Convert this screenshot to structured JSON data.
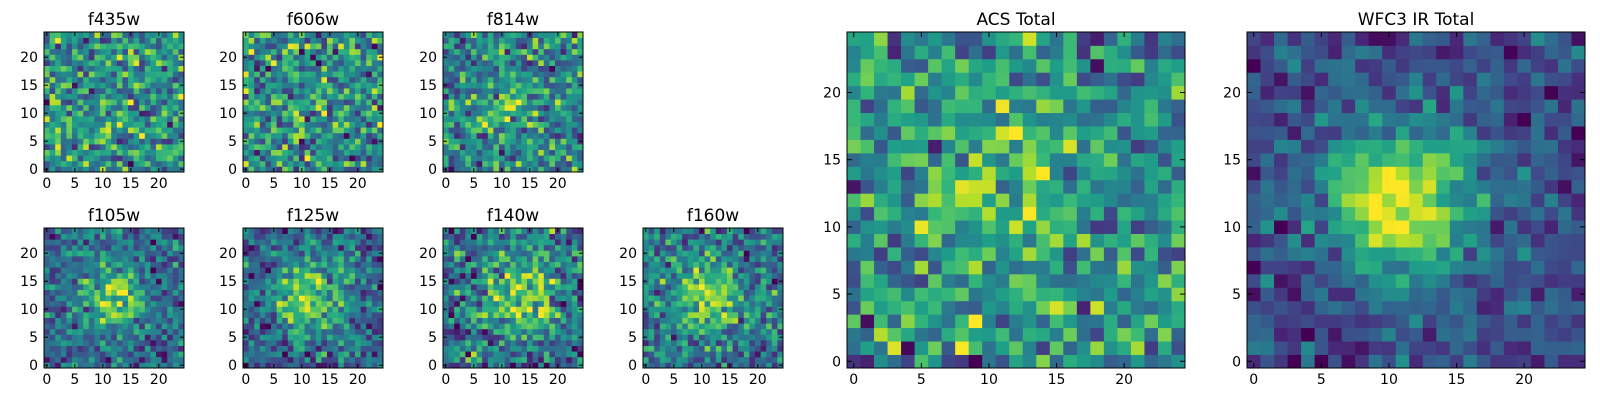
{
  "figure": {
    "colormap": "viridis",
    "grid_size": 25
  },
  "chart_data": [
    {
      "type": "heatmap",
      "title": "f435w",
      "xticks": [
        0,
        5,
        10,
        15,
        20
      ],
      "yticks": [
        0,
        5,
        10,
        15,
        20
      ],
      "xlim": [
        0,
        24
      ],
      "ylim": [
        0,
        24
      ],
      "noise": 1.0,
      "blob": 0.05,
      "blob_center": [
        12,
        12
      ],
      "blob_sigma": 3.0,
      "seed": 11
    },
    {
      "type": "heatmap",
      "title": "f606w",
      "xticks": [
        0,
        5,
        10,
        15,
        20
      ],
      "yticks": [
        0,
        5,
        10,
        15,
        20
      ],
      "xlim": [
        0,
        24
      ],
      "ylim": [
        0,
        24
      ],
      "noise": 1.0,
      "blob": 0.05,
      "blob_center": [
        12,
        12
      ],
      "blob_sigma": 3.0,
      "seed": 23
    },
    {
      "type": "heatmap",
      "title": "f814w",
      "xticks": [
        0,
        5,
        10,
        15,
        20
      ],
      "yticks": [
        0,
        5,
        10,
        15,
        20
      ],
      "xlim": [
        0,
        24
      ],
      "ylim": [
        0,
        24
      ],
      "noise": 1.0,
      "blob": 0.55,
      "blob_center": [
        11,
        12
      ],
      "blob_sigma": 3.2,
      "seed": 37
    },
    {
      "type": "heatmap",
      "title": "f105w",
      "xticks": [
        0,
        5,
        10,
        15,
        20
      ],
      "yticks": [
        0,
        5,
        10,
        15,
        20
      ],
      "xlim": [
        0,
        24
      ],
      "ylim": [
        0,
        24
      ],
      "noise": 0.55,
      "blob": 0.9,
      "blob_center": [
        12,
        12
      ],
      "blob_sigma": 3.5,
      "seed": 41
    },
    {
      "type": "heatmap",
      "title": "f125w",
      "xticks": [
        0,
        5,
        10,
        15,
        20
      ],
      "yticks": [
        0,
        5,
        10,
        15,
        20
      ],
      "xlim": [
        0,
        24
      ],
      "ylim": [
        0,
        24
      ],
      "noise": 0.55,
      "blob": 0.85,
      "blob_center": [
        11,
        12
      ],
      "blob_sigma": 4.5,
      "seed": 53
    },
    {
      "type": "heatmap",
      "title": "f140w",
      "xticks": [
        0,
        5,
        10,
        15,
        20
      ],
      "yticks": [
        0,
        5,
        10,
        15,
        20
      ],
      "xlim": [
        0,
        24
      ],
      "ylim": [
        0,
        24
      ],
      "noise": 0.6,
      "blob": 0.7,
      "blob_center": [
        13,
        13
      ],
      "blob_sigma": 5.0,
      "seed": 67
    },
    {
      "type": "heatmap",
      "title": "f160w",
      "xticks": [
        0,
        5,
        10,
        15,
        20
      ],
      "yticks": [
        0,
        5,
        10,
        15,
        20
      ],
      "xlim": [
        0,
        24
      ],
      "ylim": [
        0,
        24
      ],
      "noise": 0.6,
      "blob": 0.75,
      "blob_center": [
        11,
        12
      ],
      "blob_sigma": 4.0,
      "seed": 79
    },
    {
      "type": "heatmap",
      "title": "ACS Total",
      "xticks": [
        0,
        5,
        10,
        15,
        20
      ],
      "yticks": [
        0,
        5,
        10,
        15,
        20
      ],
      "xlim": [
        0,
        24
      ],
      "ylim": [
        0,
        24
      ],
      "noise": 0.75,
      "blob": 0.45,
      "blob_center": [
        11,
        12
      ],
      "blob_sigma": 3.5,
      "seed": 97
    },
    {
      "type": "heatmap",
      "title": "WFC3 IR Total",
      "xticks": [
        0,
        5,
        10,
        15,
        20
      ],
      "yticks": [
        0,
        5,
        10,
        15,
        20
      ],
      "xlim": [
        0,
        24
      ],
      "ylim": [
        0,
        24
      ],
      "noise": 0.35,
      "blob": 1.2,
      "blob_center": [
        11,
        12
      ],
      "blob_sigma": 3.8,
      "seed": 113
    }
  ]
}
